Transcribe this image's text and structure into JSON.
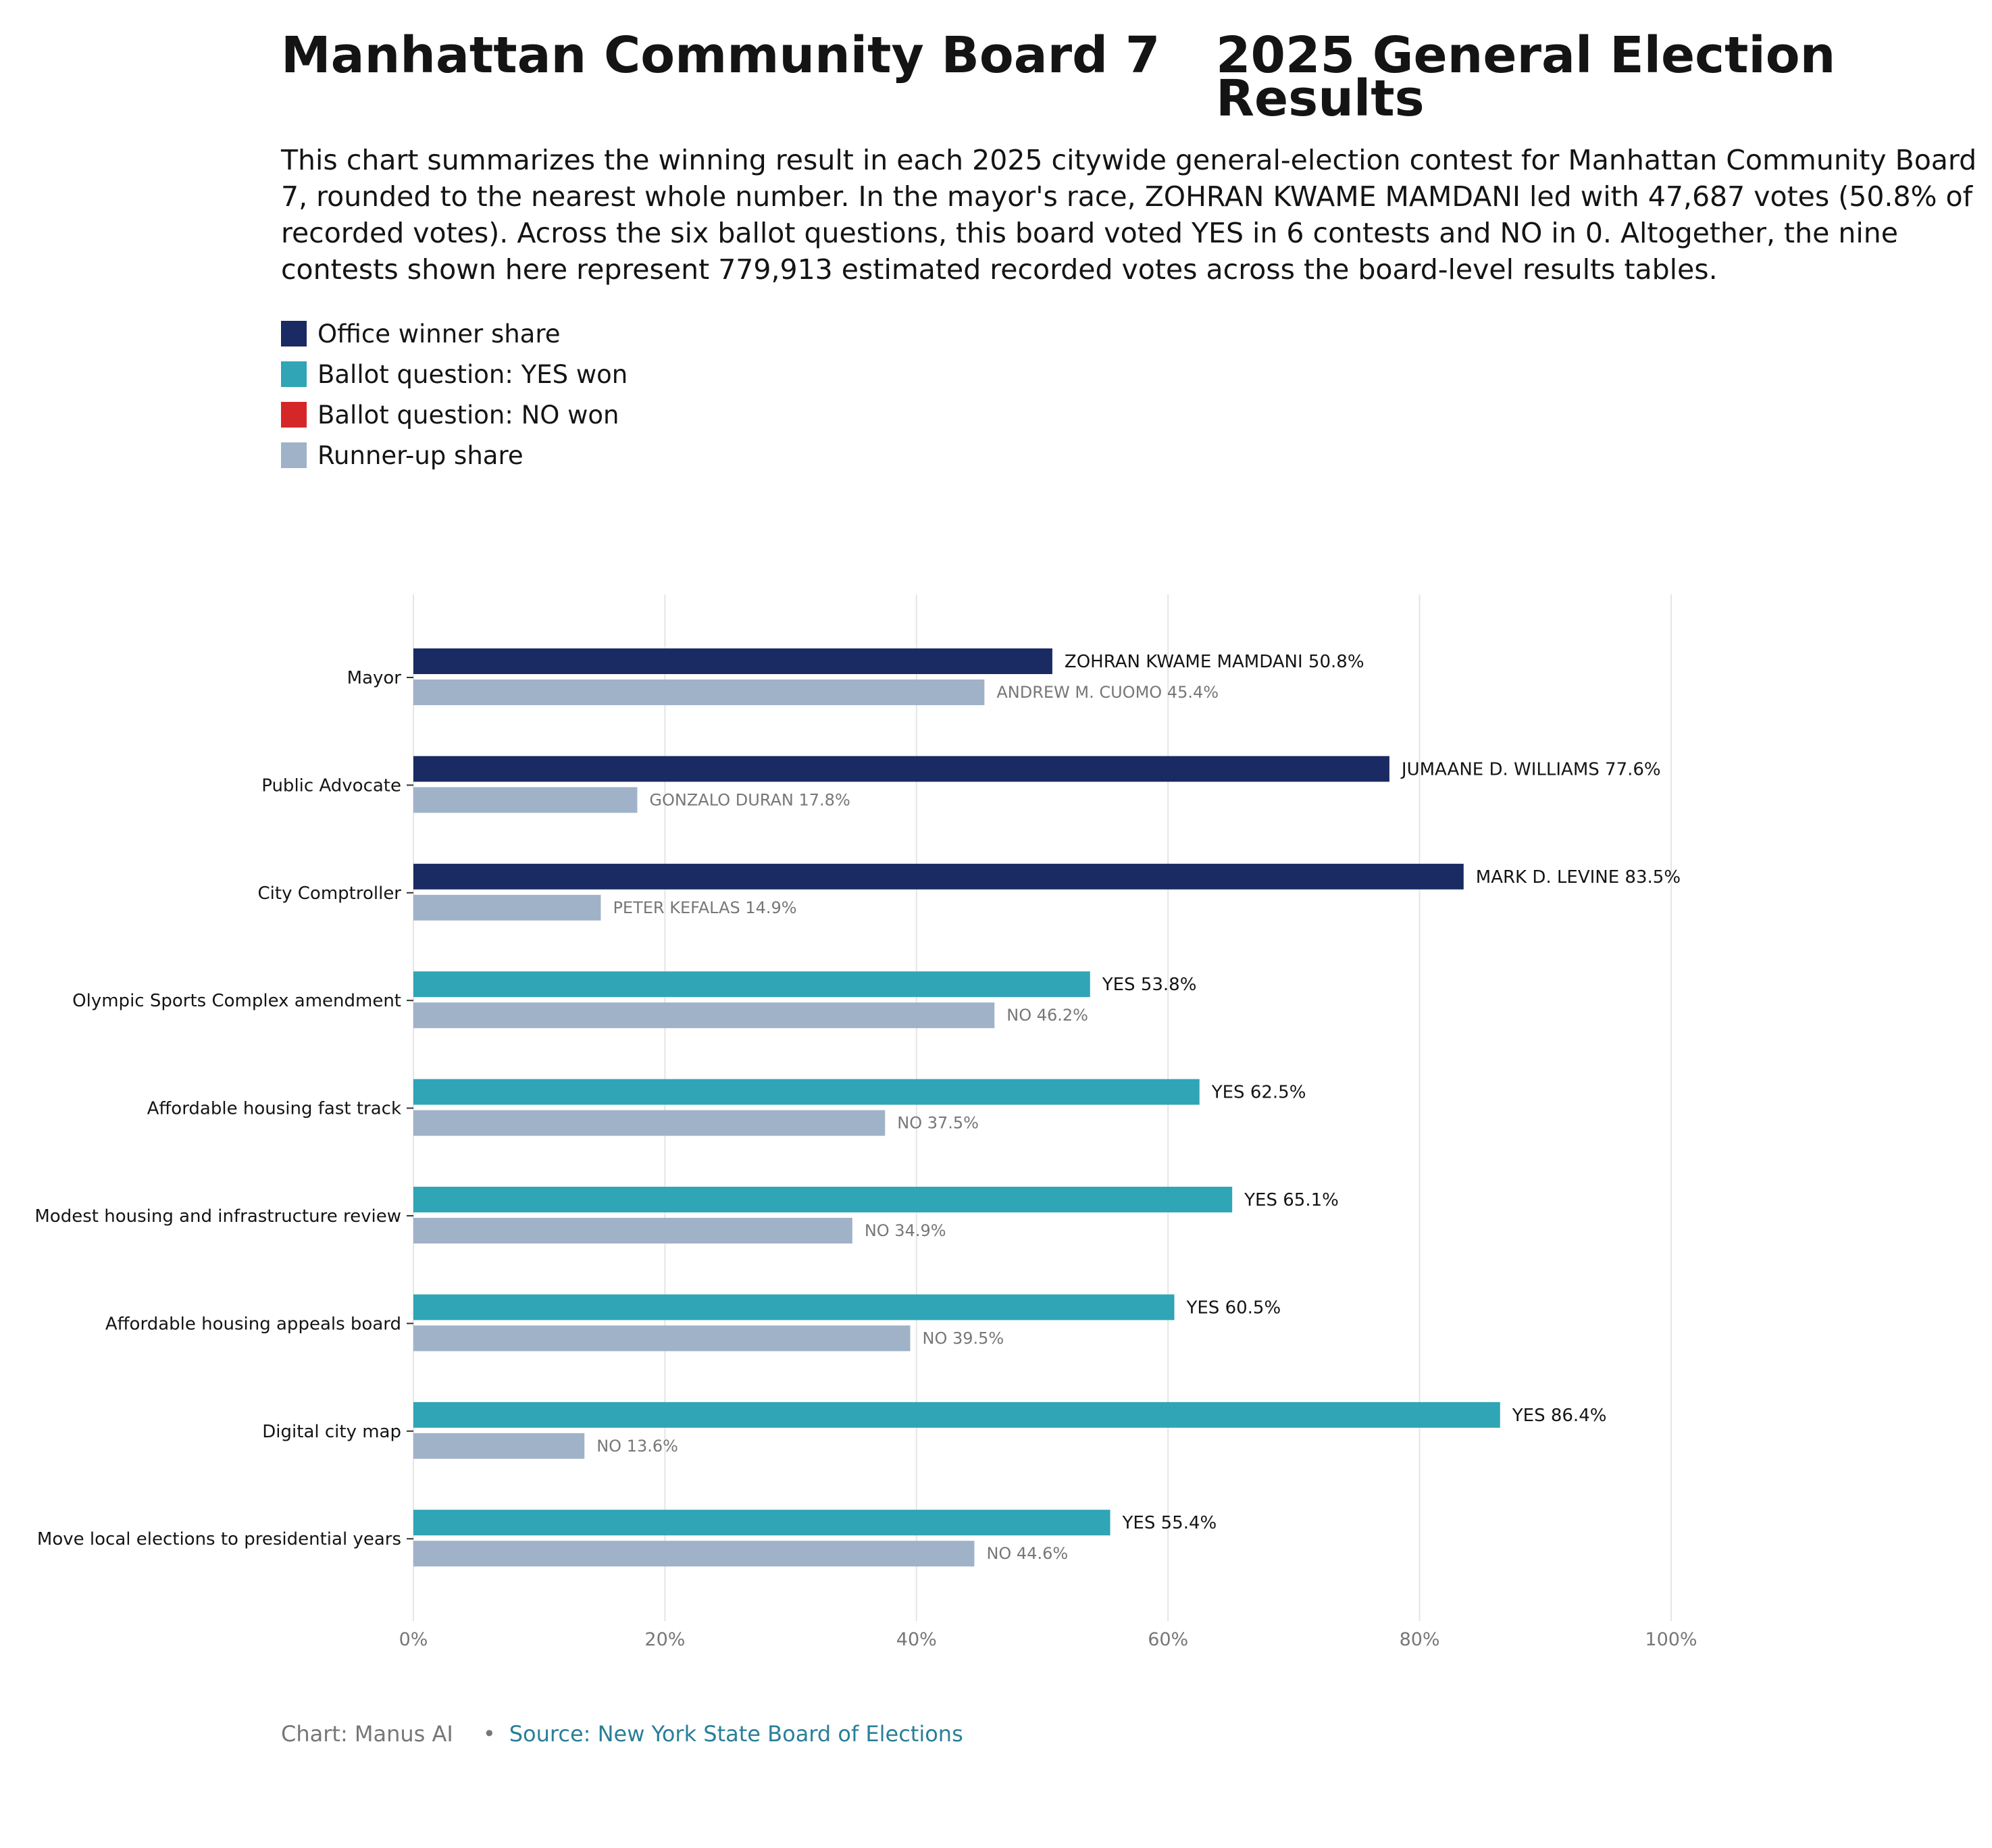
{
  "header": {
    "title_left": "Manhattan Community Board 7",
    "title_right": "2025 General Election Results",
    "subtitle": "This chart summarizes the winning result in each 2025 citywide general-election contest for Manhattan Community Board 7, rounded to the nearest whole number. In the mayor's race, ZOHRAN KWAME MAMDANI led with 47,687 votes (50.8% of recorded votes). Across the six ballot questions, this board voted YES in 6 contests and NO in 0. Altogether, the nine contests shown here represent 779,913 estimated recorded votes across the board-level results tables."
  },
  "legend": [
    {
      "label": "Office winner share",
      "color": "#1a2a62"
    },
    {
      "label": "Ballot question: YES won",
      "color": "#2fa5b6"
    },
    {
      "label": "Ballot question: NO won",
      "color": "#d62728"
    },
    {
      "label": "Runner-up share",
      "color": "#a0b2c8"
    }
  ],
  "chart_data": {
    "type": "bar",
    "orientation": "horizontal",
    "xlim": [
      0,
      100
    ],
    "x_ticks": [
      "0%",
      "20%",
      "40%",
      "60%",
      "80%",
      "100%"
    ],
    "grid": true,
    "colors": {
      "office_winner": "#1a2a62",
      "yes_won": "#2fa5b6",
      "no_won": "#d62728",
      "runner_up": "#a0b2c8"
    },
    "contests": [
      {
        "category": "Mayor",
        "kind": "office_winner",
        "winner_label": "ZOHRAN KWAME MAMDANI 50.8%",
        "winner_value": 50.8,
        "runner_label": "ANDREW M. CUOMO 45.4%",
        "runner_value": 45.4
      },
      {
        "category": "Public Advocate",
        "kind": "office_winner",
        "winner_label": "JUMAANE D. WILLIAMS 77.6%",
        "winner_value": 77.6,
        "runner_label": "GONZALO DURAN 17.8%",
        "runner_value": 17.8
      },
      {
        "category": "City Comptroller",
        "kind": "office_winner",
        "winner_label": "MARK D. LEVINE 83.5%",
        "winner_value": 83.5,
        "runner_label": "PETER KEFALAS 14.9%",
        "runner_value": 14.9
      },
      {
        "category": "Olympic Sports Complex amendment",
        "kind": "yes_won",
        "winner_label": "YES 53.8%",
        "winner_value": 53.8,
        "runner_label": "NO 46.2%",
        "runner_value": 46.2
      },
      {
        "category": "Affordable housing fast track",
        "kind": "yes_won",
        "winner_label": "YES 62.5%",
        "winner_value": 62.5,
        "runner_label": "NO 37.5%",
        "runner_value": 37.5
      },
      {
        "category": "Modest housing and infrastructure review",
        "kind": "yes_won",
        "winner_label": "YES 65.1%",
        "winner_value": 65.1,
        "runner_label": "NO 34.9%",
        "runner_value": 34.9
      },
      {
        "category": "Affordable housing appeals board",
        "kind": "yes_won",
        "winner_label": "YES 60.5%",
        "winner_value": 60.5,
        "runner_label": "NO 39.5%",
        "runner_value": 39.5
      },
      {
        "category": "Digital city map",
        "kind": "yes_won",
        "winner_label": "YES 86.4%",
        "winner_value": 86.4,
        "runner_label": "NO 13.6%",
        "runner_value": 13.6
      },
      {
        "category": "Move local elections to presidential years",
        "kind": "yes_won",
        "winner_label": "YES 55.4%",
        "winner_value": 55.4,
        "runner_label": "NO 44.6%",
        "runner_value": 44.6
      }
    ]
  },
  "footer": {
    "credit": "Chart: Manus AI",
    "separator": "•",
    "source": "Source: New York State Board of Elections"
  }
}
